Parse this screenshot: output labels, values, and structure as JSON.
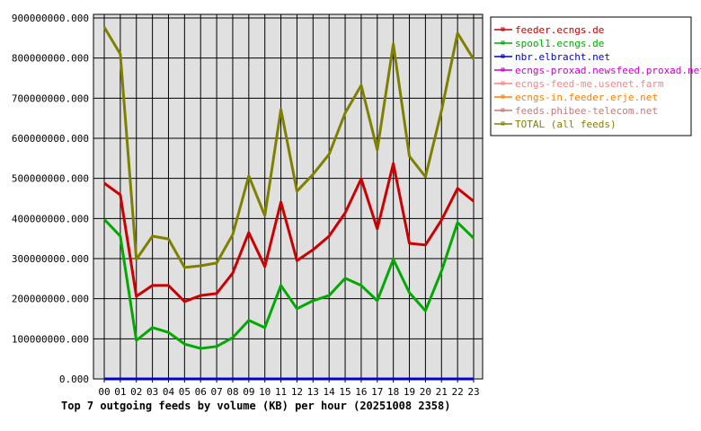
{
  "chart_data": {
    "type": "line",
    "title": "Top 7 outgoing feeds by volume (KB) per hour (20251008 2358)",
    "xlabel": "",
    "ylabel": "",
    "ylim": [
      0,
      900000000
    ],
    "yticks": [
      "0.000",
      "100000000.000",
      "200000000.000",
      "300000000.000",
      "400000000.000",
      "500000000.000",
      "600000000.000",
      "700000000.000",
      "800000000.000",
      "900000000.000"
    ],
    "grid": true,
    "legend_position": "right",
    "categories": [
      "00",
      "01",
      "02",
      "03",
      "04",
      "05",
      "06",
      "07",
      "08",
      "09",
      "10",
      "11",
      "12",
      "13",
      "14",
      "15",
      "16",
      "17",
      "18",
      "19",
      "20",
      "21",
      "22",
      "23"
    ],
    "series": [
      {
        "name": "feeder.ecngs.de",
        "color": "#cc0000",
        "values": [
          488000000,
          459000000,
          206000000,
          233000000,
          233000000,
          193000000,
          208000000,
          213000000,
          264000000,
          365000000,
          280000000,
          441000000,
          295000000,
          322000000,
          356000000,
          414000000,
          499000000,
          374000000,
          537000000,
          338000000,
          334000000,
          396000000,
          475000000,
          443000000
        ]
      },
      {
        "name": "spool1.ecngs.de",
        "color": "#00aa00",
        "values": [
          398000000,
          356000000,
          96000000,
          128000000,
          116000000,
          87000000,
          76000000,
          81000000,
          103000000,
          146000000,
          128000000,
          233000000,
          175000000,
          195000000,
          208000000,
          251000000,
          233000000,
          195000000,
          298000000,
          215000000,
          170000000,
          269000000,
          390000000,
          351000000
        ]
      },
      {
        "name": "nbr.elbracht.net",
        "color": "#0000cc",
        "values": [
          0,
          0,
          0,
          0,
          0,
          0,
          0,
          0,
          0,
          0,
          0,
          0,
          0,
          0,
          0,
          0,
          0,
          0,
          0,
          0,
          0,
          0,
          0,
          0
        ]
      },
      {
        "name": "ecngs-proxad.newsfeed.proxad.net",
        "color": "#cc00cc",
        "values": [
          0,
          0,
          0,
          0,
          0,
          0,
          0,
          0,
          0,
          0,
          0,
          0,
          0,
          0,
          0,
          0,
          0,
          0,
          0,
          0,
          0,
          0,
          0,
          0
        ]
      },
      {
        "name": "ecngs-feed-me.usenet.farm",
        "color": "#ff8080",
        "values": [
          0,
          0,
          0,
          0,
          0,
          0,
          0,
          0,
          0,
          0,
          0,
          0,
          0,
          0,
          0,
          0,
          0,
          0,
          0,
          0,
          0,
          0,
          0,
          0
        ]
      },
      {
        "name": "ecngs-in.feeder.erje.net",
        "color": "#ff8000",
        "values": [
          0,
          0,
          0,
          0,
          0,
          0,
          0,
          0,
          0,
          0,
          0,
          0,
          0,
          0,
          0,
          0,
          0,
          0,
          0,
          0,
          0,
          0,
          0,
          0
        ]
      },
      {
        "name": "feeds.phibee-telecom.net",
        "color": "#cc7777",
        "values": [
          0,
          0,
          0,
          0,
          0,
          0,
          0,
          0,
          0,
          0,
          0,
          0,
          0,
          0,
          0,
          0,
          0,
          0,
          0,
          0,
          0,
          0,
          0,
          0
        ]
      },
      {
        "name": "TOTAL (all feeds)",
        "color": "#808000",
        "values": [
          877000000,
          810000000,
          298000000,
          356000000,
          349000000,
          278000000,
          282000000,
          289000000,
          360000000,
          506000000,
          407000000,
          672000000,
          468000000,
          510000000,
          560000000,
          663000000,
          732000000,
          571000000,
          835000000,
          555000000,
          504000000,
          669000000,
          862000000,
          797000000
        ]
      }
    ]
  }
}
